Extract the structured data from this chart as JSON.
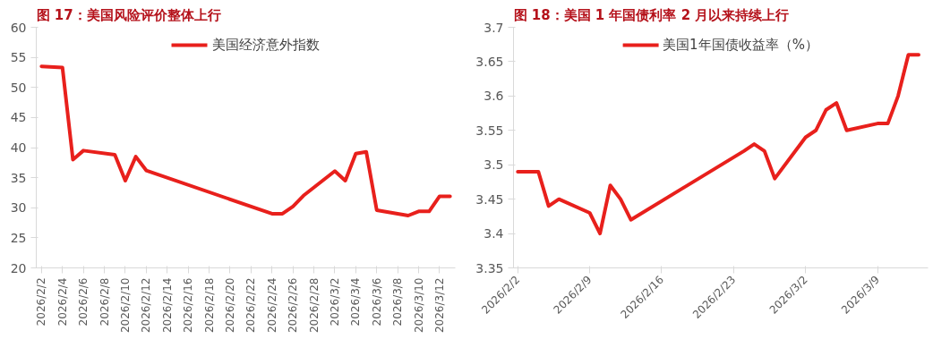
{
  "chart_data": [
    {
      "type": "line",
      "title": "图 17：美国风险评价整体上行",
      "x": [
        "2026-02-02",
        "2026-02-04",
        "2026-02-05",
        "2026-02-06",
        "2026-02-09",
        "2026-02-10",
        "2026-02-11",
        "2026-02-12",
        "2026-02-24",
        "2026-02-25",
        "2026-02-26",
        "2026-02-27",
        "2026-03-02",
        "2026-03-03",
        "2026-03-04",
        "2026-03-05",
        "2026-03-06",
        "2026-03-09",
        "2026-03-10",
        "2026-03-11",
        "2026-03-12",
        "2026-03-13"
      ],
      "series": [
        {
          "name": "美国经济意外指数",
          "color": "#e8201c",
          "values": [
            53.5,
            53.3,
            38,
            39.5,
            38.8,
            34.5,
            38.5,
            36.2,
            29,
            29,
            30.2,
            32,
            36.1,
            34.5,
            39,
            39.3,
            29.6,
            28.7,
            29.4,
            29.4,
            31.9,
            31.9
          ]
        }
      ],
      "xlim": [
        "2026-02-01T12:00",
        "2026-03-13T12:00"
      ],
      "xticks": [
        {
          "value": "2026-02-02",
          "label": "2026/2/2"
        },
        {
          "value": "2026-02-04",
          "label": "2026/2/4"
        },
        {
          "value": "2026-02-06",
          "label": "2026/2/6"
        },
        {
          "value": "2026-02-08",
          "label": "2026/2/8"
        },
        {
          "value": "2026-02-10",
          "label": "2026/2/10"
        },
        {
          "value": "2026-02-12",
          "label": "2026/2/12"
        },
        {
          "value": "2026-02-14",
          "label": "2026/2/14"
        },
        {
          "value": "2026-02-16",
          "label": "2026/2/16"
        },
        {
          "value": "2026-02-18",
          "label": "2026/2/18"
        },
        {
          "value": "2026-02-20",
          "label": "2026/2/20"
        },
        {
          "value": "2026-02-22",
          "label": "2026/2/22"
        },
        {
          "value": "2026-02-24",
          "label": "2026/2/24"
        },
        {
          "value": "2026-02-26",
          "label": "2026/2/26"
        },
        {
          "value": "2026-02-28",
          "label": "2026/2/28"
        },
        {
          "value": "2026-03-02",
          "label": "2026/3/2"
        },
        {
          "value": "2026-03-04",
          "label": "2026/3/4"
        },
        {
          "value": "2026-03-06",
          "label": "2026/3/6"
        },
        {
          "value": "2026-03-08",
          "label": "2026/3/8"
        },
        {
          "value": "2026-03-10",
          "label": "2026/3/10"
        },
        {
          "value": "2026-03-12",
          "label": "2026/3/12"
        }
      ],
      "ylim": [
        20,
        60
      ],
      "yticks": [
        20,
        25,
        30,
        35,
        40,
        45,
        50,
        55,
        60
      ],
      "grid": false,
      "legend": "top",
      "marker": "none",
      "line_style": "solid"
    },
    {
      "type": "line",
      "title": "图 18：美国 1 年国债利率 2 月以来持续上行",
      "x": [
        "2026-02-02",
        "2026-02-04",
        "2026-02-05",
        "2026-02-06",
        "2026-02-09",
        "2026-02-10",
        "2026-02-11",
        "2026-02-12",
        "2026-02-13",
        "2026-02-24",
        "2026-02-25",
        "2026-02-26",
        "2026-02-27",
        "2026-03-02",
        "2026-03-03",
        "2026-03-04",
        "2026-03-05",
        "2026-03-06",
        "2026-03-09",
        "2026-03-10",
        "2026-03-11",
        "2026-03-12",
        "2026-03-13"
      ],
      "series": [
        {
          "name": "美国1年国债收益率（%）",
          "color": "#e8201c",
          "values": [
            3.49,
            3.49,
            3.44,
            3.45,
            3.43,
            3.4,
            3.47,
            3.45,
            3.42,
            3.52,
            3.53,
            3.52,
            3.48,
            3.54,
            3.55,
            3.58,
            3.59,
            3.55,
            3.56,
            3.56,
            3.6,
            3.66,
            3.66
          ]
        }
      ],
      "xlim": [
        "2026-02-01T14:00",
        "2026-03-13T22:00"
      ],
      "xticks": [
        {
          "value": "2026-02-02",
          "label": "2026/2/2"
        },
        {
          "value": "2026-02-09",
          "label": "2026/2/9"
        },
        {
          "value": "2026-02-16",
          "label": "2026/2/16"
        },
        {
          "value": "2026-02-23",
          "label": "2026/2/23"
        },
        {
          "value": "2026-03-02",
          "label": "2026/3/2"
        },
        {
          "value": "2026-03-09",
          "label": "2026/3/9"
        }
      ],
      "ylim": [
        3.35,
        3.7
      ],
      "yticks": [
        3.35,
        3.4,
        3.45,
        3.5,
        3.55,
        3.6,
        3.65,
        3.7
      ],
      "grid": false,
      "legend": "top",
      "marker": "none",
      "line_style": "solid"
    }
  ]
}
